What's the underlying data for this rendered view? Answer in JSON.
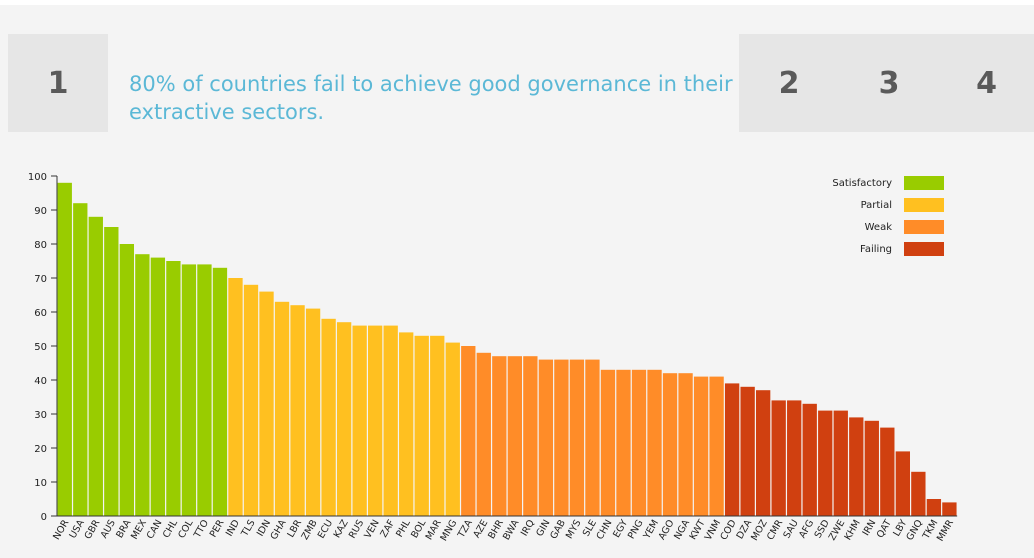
{
  "nav": {
    "tabs": [
      {
        "label": "1"
      },
      {
        "label": "2"
      },
      {
        "label": "3"
      },
      {
        "label": "4"
      }
    ]
  },
  "headline": "80% of countries fail to achieve good governance in their extractive sectors.",
  "colors": {
    "Satisfactory": "#99cc00",
    "Partial": "#ffc020",
    "Weak": "#ff8c28",
    "Failing": "#d04010",
    "axis": "#333333"
  },
  "chart_data": {
    "type": "bar",
    "title": "",
    "xlabel": "",
    "ylabel": "",
    "ylim": [
      0,
      100
    ],
    "yticks": [
      0,
      10,
      20,
      30,
      40,
      50,
      60,
      70,
      80,
      90,
      100
    ],
    "grid": false,
    "legend_position": "top-right",
    "legend": [
      "Satisfactory",
      "Partial",
      "Weak",
      "Failing"
    ],
    "categories": [
      "NOR",
      "USA",
      "GBR",
      "AUS",
      "BRA",
      "MEX",
      "CAN",
      "CHL",
      "COL",
      "TTO",
      "PER",
      "IND",
      "TLS",
      "IDN",
      "GHA",
      "LBR",
      "ZMB",
      "ECU",
      "KAZ",
      "RUS",
      "VEN",
      "ZAF",
      "PHL",
      "BOL",
      "MAR",
      "MNG",
      "TZA",
      "AZE",
      "BHR",
      "BWA",
      "IRQ",
      "GIN",
      "GAB",
      "MYS",
      "SLE",
      "CHN",
      "EGY",
      "PNG",
      "YEM",
      "AGO",
      "NGA",
      "KWT",
      "VNM",
      "COD",
      "DZA",
      "MOZ",
      "CMR",
      "SAU",
      "AFG",
      "SSD",
      "ZWE",
      "KHM",
      "IRN",
      "QAT",
      "LBY",
      "GNQ",
      "TKM",
      "MMR"
    ],
    "values": [
      98,
      92,
      88,
      85,
      80,
      77,
      76,
      75,
      74,
      74,
      73,
      70,
      68,
      66,
      63,
      62,
      61,
      58,
      57,
      56,
      56,
      56,
      54,
      53,
      53,
      51,
      50,
      48,
      47,
      47,
      47,
      46,
      46,
      46,
      46,
      43,
      43,
      43,
      43,
      42,
      42,
      41,
      41,
      39,
      38,
      37,
      34,
      34,
      33,
      31,
      31,
      29,
      28,
      26,
      19,
      13,
      5,
      4
    ],
    "band": [
      "Satisfactory",
      "Satisfactory",
      "Satisfactory",
      "Satisfactory",
      "Satisfactory",
      "Satisfactory",
      "Satisfactory",
      "Satisfactory",
      "Satisfactory",
      "Satisfactory",
      "Satisfactory",
      "Partial",
      "Partial",
      "Partial",
      "Partial",
      "Partial",
      "Partial",
      "Partial",
      "Partial",
      "Partial",
      "Partial",
      "Partial",
      "Partial",
      "Partial",
      "Partial",
      "Partial",
      "Weak",
      "Weak",
      "Weak",
      "Weak",
      "Weak",
      "Weak",
      "Weak",
      "Weak",
      "Weak",
      "Weak",
      "Weak",
      "Weak",
      "Weak",
      "Weak",
      "Weak",
      "Weak",
      "Weak",
      "Failing",
      "Failing",
      "Failing",
      "Failing",
      "Failing",
      "Failing",
      "Failing",
      "Failing",
      "Failing",
      "Failing",
      "Failing",
      "Failing",
      "Failing",
      "Failing",
      "Failing"
    ]
  }
}
